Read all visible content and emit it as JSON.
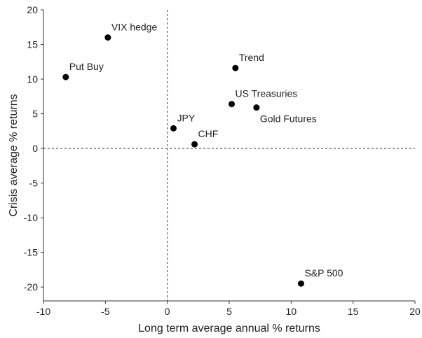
{
  "chart_data": {
    "type": "scatter",
    "xlabel": "Long term average annual % returns",
    "ylabel": "Crisis average % returns",
    "series": [
      {
        "color": "#000000",
        "labels": [
          "VIX hedge",
          "Put Buy",
          "Trend",
          "US Treasuries",
          "Gold Futures",
          "JPY",
          "CHF",
          "S&P 500"
        ],
        "x": [
          -4.8,
          -8.2,
          5.5,
          5.2,
          7.2,
          0.5,
          2.2,
          10.8
        ],
        "values": [
          16.0,
          10.3,
          11.6,
          6.4,
          5.9,
          2.9,
          0.6,
          -19.5
        ]
      }
    ],
    "xlim": [
      -10,
      20
    ],
    "xticks": [
      -10,
      -5,
      0,
      5,
      10,
      15,
      20
    ],
    "ylim": [
      -22,
      20
    ],
    "yticks": [
      -20,
      -15,
      -10,
      -5,
      0,
      5,
      10,
      15,
      20
    ],
    "hlines": [
      0
    ],
    "vlines": [
      0
    ]
  }
}
